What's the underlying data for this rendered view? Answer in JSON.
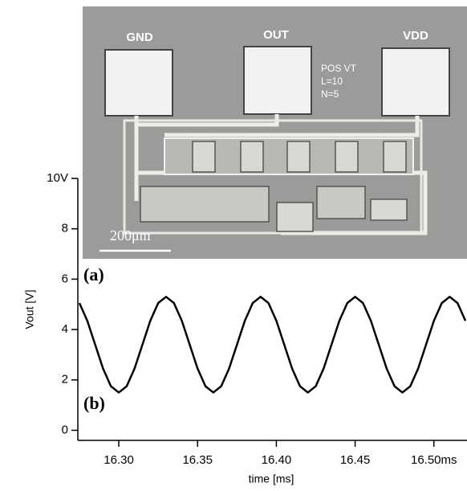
{
  "chart_data": {
    "type": "line",
    "x_label": "time [ms]",
    "y_label": "Vout [V]",
    "x": [
      16.275,
      16.28,
      16.285,
      16.29,
      16.295,
      16.3,
      16.305,
      16.31,
      16.315,
      16.32,
      16.325,
      16.33,
      16.335,
      16.34,
      16.345,
      16.35,
      16.355,
      16.36,
      16.365,
      16.37,
      16.375,
      16.38,
      16.385,
      16.39,
      16.395,
      16.4,
      16.405,
      16.41,
      16.415,
      16.42,
      16.425,
      16.43,
      16.435,
      16.44,
      16.445,
      16.45,
      16.455,
      16.46,
      16.465,
      16.47,
      16.475,
      16.48,
      16.485,
      16.49,
      16.495,
      16.5,
      16.505,
      16.51,
      16.515,
      16.52
    ],
    "values": [
      5.05,
      4.35,
      3.4,
      2.45,
      1.75,
      1.5,
      1.75,
      2.45,
      3.4,
      4.35,
      5.05,
      5.3,
      5.05,
      4.35,
      3.4,
      2.45,
      1.75,
      1.5,
      1.75,
      2.45,
      3.4,
      4.35,
      5.05,
      5.3,
      5.05,
      4.35,
      3.4,
      2.45,
      1.75,
      1.5,
      1.75,
      2.45,
      3.4,
      4.35,
      5.05,
      5.3,
      5.05,
      4.35,
      3.4,
      2.45,
      1.75,
      1.5,
      1.75,
      2.45,
      3.4,
      4.35,
      5.05,
      5.3,
      5.05,
      4.35
    ],
    "color": "#000000",
    "xlim": [
      16.274,
      16.521
    ],
    "ylim": [
      -0.4,
      10
    ],
    "xticks": [
      {
        "value": 16.3,
        "label": "16.30"
      },
      {
        "value": 16.35,
        "label": "16.35"
      },
      {
        "value": 16.4,
        "label": "16.40"
      },
      {
        "value": 16.45,
        "label": "16.45"
      },
      {
        "value": 16.5,
        "label": "16.50ms"
      }
    ],
    "yticks": [
      0,
      2,
      4,
      6,
      8,
      {
        "value": 10,
        "label": "10V"
      }
    ],
    "annotations": {
      "panel_a": "(a)",
      "panel_b": "(b)",
      "pad_gnd": "GND",
      "pad_out": "OUT",
      "pad_vdd": "VDD",
      "chip_line1": "POS VT",
      "chip_line2": "L=10",
      "chip_line3": "N=5",
      "scale_bar": "200μm"
    }
  }
}
